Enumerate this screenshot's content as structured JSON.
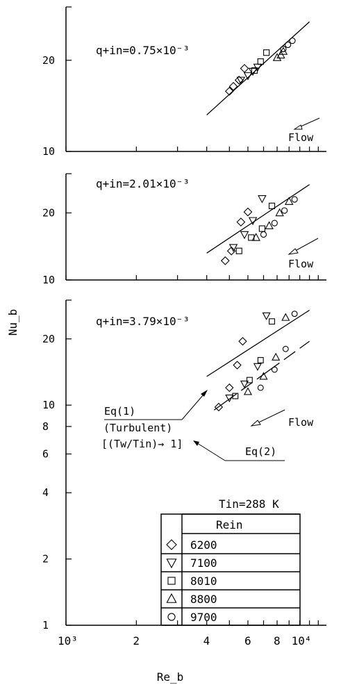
{
  "chart_data": {
    "type": "scatter",
    "xlabel": "Re_b",
    "ylabel": "Nu_b",
    "x_tick_labels": [
      "10³",
      "2",
      "4",
      "6",
      "8",
      "10⁴"
    ],
    "x_scale": "log",
    "xlim": [
      1000,
      13000
    ],
    "legend_title": "Rein",
    "inlet_temperature_label": "Tin=288 K",
    "flow_label": "Flow",
    "panels": [
      {
        "label": "q+in=0.75×10⁻³",
        "y_scale": "log",
        "ylim": [
          10,
          30
        ],
        "y_tick_labels": [
          "10",
          "20"
        ],
        "series": [
          {
            "name": "6200",
            "marker": "diamond",
            "x": [
              5000,
              5200,
              5500,
              5800
            ],
            "y": [
              15.8,
              16.4,
              17.2,
              18.8
            ]
          },
          {
            "name": "7100",
            "marker": "triangle-down",
            "x": [
              5600,
              6000,
              6300,
              6600
            ],
            "y": [
              17.2,
              17.8,
              18.4,
              19.0
            ]
          },
          {
            "name": "8010",
            "marker": "square",
            "x": [
              6400,
              6800,
              7200
            ],
            "y": [
              18.5,
              19.8,
              21.2
            ]
          },
          {
            "name": "8800",
            "marker": "triangle-up",
            "x": [
              8000,
              8300,
              8500
            ],
            "y": [
              20.4,
              20.8,
              21.4
            ]
          },
          {
            "name": "9700",
            "marker": "circle",
            "x": [
              8500,
              8900,
              9300
            ],
            "y": [
              21.8,
              22.5,
              23.2
            ]
          }
        ],
        "lines": [
          {
            "name": "Eq(1)",
            "x": [
              4000,
              11000
            ],
            "y": [
              13.2,
              26.8
            ]
          }
        ]
      },
      {
        "label": "q+in=2.01×10⁻³",
        "y_scale": "log",
        "ylim": [
          10,
          30
        ],
        "y_tick_labels": [
          "10",
          "20"
        ],
        "series": [
          {
            "name": "6200",
            "marker": "diamond",
            "x": [
              4800,
              5100,
              5600,
              6000
            ],
            "y": [
              12.2,
              13.5,
              18.2,
              20.2
            ]
          },
          {
            "name": "7100",
            "marker": "triangle-down",
            "x": [
              5200,
              5800,
              6300,
              6900
            ],
            "y": [
              14.0,
              16.0,
              18.5,
              23.2
            ]
          },
          {
            "name": "8010",
            "marker": "square",
            "x": [
              5500,
              6200,
              6900,
              7600
            ],
            "y": [
              13.5,
              15.5,
              17.0,
              21.5
            ]
          },
          {
            "name": "8800",
            "marker": "triangle-up",
            "x": [
              6500,
              7400,
              8200,
              9000
            ],
            "y": [
              15.5,
              17.5,
              20.0,
              22.5
            ]
          },
          {
            "name": "9700",
            "marker": "circle",
            "x": [
              7000,
              7800,
              8600,
              9500
            ],
            "y": [
              16.0,
              18.0,
              20.5,
              23.0
            ]
          }
        ],
        "lines": [
          {
            "name": "Eq(1)",
            "x": [
              4000,
              11000
            ],
            "y": [
              13.2,
              26.8
            ]
          }
        ]
      },
      {
        "label": "q+in=3.79×10⁻³",
        "y_scale": "log",
        "ylim": [
          1,
          30
        ],
        "y_tick_labels": [
          "1",
          "2",
          "4",
          "6",
          "8",
          "10",
          "20"
        ],
        "series": [
          {
            "name": "6200",
            "marker": "diamond",
            "x": [
              4500,
              5000,
              5400,
              5700
            ],
            "y": [
              9.8,
              12.0,
              15.2,
              19.5
            ]
          },
          {
            "name": "7100",
            "marker": "triangle-down",
            "x": [
              5000,
              5800,
              6600,
              7200
            ],
            "y": [
              10.8,
              12.5,
              15.0,
              25.5
            ]
          },
          {
            "name": "8010",
            "marker": "square",
            "x": [
              5300,
              6100,
              6800,
              7600
            ],
            "y": [
              11.0,
              13.0,
              16.0,
              24.0
            ]
          },
          {
            "name": "8800",
            "marker": "triangle-up",
            "x": [
              6000,
              7000,
              7900,
              8700
            ],
            "y": [
              11.5,
              13.5,
              16.5,
              25.0
            ]
          },
          {
            "name": "9700",
            "marker": "circle",
            "x": [
              6800,
              7800,
              8700,
              9500
            ],
            "y": [
              12.0,
              14.5,
              18.0,
              26.0
            ]
          }
        ],
        "lines": [
          {
            "name": "Eq(1)",
            "x": [
              4000,
              11000
            ],
            "y": [
              13.5,
              27.0
            ]
          },
          {
            "name": "Eq(2)",
            "x": [
              4300,
              11000
            ],
            "y": [
              9.5,
              19.5
            ]
          }
        ],
        "annotations": [
          "Eq(1)",
          "(Turbulent)",
          "[(Tw/Tin)→ 1]",
          "Eq(2)"
        ]
      }
    ]
  }
}
